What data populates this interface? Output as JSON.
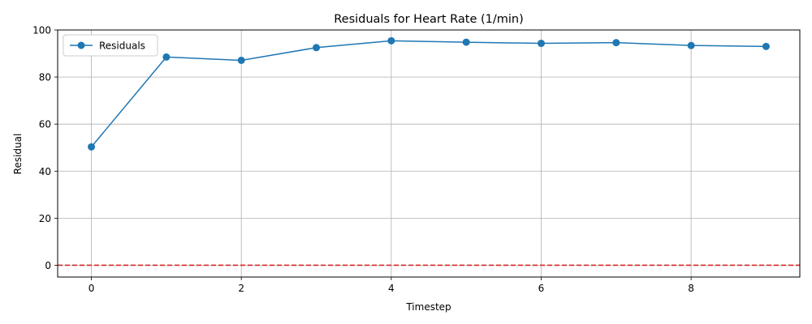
{
  "chart_data": {
    "type": "line",
    "title": "Residuals for Heart Rate (1/min)",
    "xlabel": "Timestep",
    "ylabel": "Residual",
    "x": [
      0,
      1,
      2,
      3,
      4,
      5,
      6,
      7,
      8,
      9
    ],
    "series": [
      {
        "name": "Residuals",
        "values": [
          50.3,
          88.5,
          87.1,
          92.5,
          95.4,
          94.8,
          94.3,
          94.6,
          93.4,
          93.0
        ],
        "color": "#1f77b4",
        "marker": "circle"
      }
    ],
    "reference_line": {
      "y": 0,
      "color": "#d62728",
      "style": "dashed"
    },
    "xlim": [
      -0.45,
      9.45
    ],
    "ylim": [
      -5,
      100
    ],
    "xticks": [
      0,
      2,
      4,
      6,
      8
    ],
    "yticks": [
      0,
      20,
      40,
      60,
      80,
      100
    ],
    "grid": true,
    "legend_position": "top-left"
  }
}
